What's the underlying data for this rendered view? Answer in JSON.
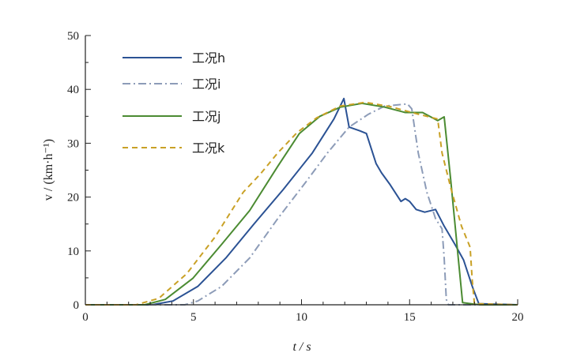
{
  "chart_data": {
    "type": "line",
    "title": "",
    "xlabel": "t / s",
    "ylabel": "v / (km·h⁻¹)",
    "xlim": [
      0,
      20
    ],
    "ylim": [
      0,
      50
    ],
    "xticks": [
      "0",
      "5",
      "10",
      "15",
      "20"
    ],
    "yticks": [
      "0",
      "10",
      "20",
      "30",
      "40",
      "50"
    ],
    "grid": false,
    "legend_position": "top-left",
    "series": [
      {
        "name": "工况h",
        "color": "#2b5294",
        "style": "solid",
        "x": [
          0,
          3.1,
          4.05,
          5.2,
          6.5,
          7.8,
          9.15,
          10.5,
          11.5,
          11.96,
          12.2,
          12.7,
          13.0,
          13.45,
          13.7,
          14.1,
          14.6,
          14.8,
          15.0,
          15.3,
          15.7,
          16.2,
          16.6,
          17.1,
          17.5,
          17.9,
          18.2,
          20
        ],
        "y": [
          0,
          0,
          0.7,
          3.4,
          8.7,
          15,
          21.4,
          28.2,
          34.5,
          38.3,
          33,
          32.3,
          31.8,
          26.2,
          24.5,
          22.3,
          19.2,
          19.7,
          19.2,
          17.7,
          17.2,
          17.7,
          14.6,
          11.2,
          8.3,
          3.4,
          0.2,
          0
        ]
      },
      {
        "name": "工况i",
        "color": "#8d9cb8",
        "style": "dashdot",
        "x": [
          0,
          4.6,
          5.2,
          6.3,
          7.6,
          8.9,
          10.2,
          11.2,
          12.2,
          13.1,
          13.85,
          14.9,
          15.1,
          15.4,
          15.8,
          16.2,
          16.5,
          16.6,
          16.7,
          16.8,
          20
        ],
        "y": [
          0,
          0,
          0.7,
          3.4,
          8.7,
          16,
          22.8,
          28.2,
          33,
          35.4,
          36.9,
          37.3,
          36.4,
          28.2,
          20.9,
          16,
          14.1,
          8.7,
          1,
          0,
          0
        ]
      },
      {
        "name": "工况j",
        "color": "#4b8b32",
        "style": "solid",
        "x": [
          0,
          2.75,
          3.7,
          4.97,
          6.3,
          7.6,
          8.9,
          9.9,
          10.85,
          11.8,
          12.8,
          13.85,
          14.8,
          15.6,
          16.3,
          16.6,
          16.9,
          17.25,
          17.45,
          18.0,
          18.3,
          20
        ],
        "y": [
          0,
          0,
          1,
          4.9,
          11.2,
          17.5,
          25.7,
          31.8,
          35,
          36.7,
          37.4,
          36.7,
          35.7,
          35.7,
          34.2,
          34.9,
          23.3,
          8.7,
          0.4,
          0.1,
          0,
          0
        ]
      },
      {
        "name": "工况k",
        "color": "#c9a126",
        "style": "dashed",
        "x": [
          0,
          2.35,
          3.4,
          4.7,
          6.0,
          7.3,
          8.1,
          8.9,
          9.8,
          10.7,
          11.8,
          12.95,
          14.1,
          15.4,
          16.3,
          16.5,
          16.9,
          17.4,
          17.8,
          17.9,
          18.0,
          20
        ],
        "y": [
          0,
          0,
          1.2,
          5.8,
          12.6,
          20.9,
          24.3,
          28.2,
          32,
          34.7,
          36.9,
          37.6,
          36.8,
          35.4,
          34.5,
          28.2,
          21.8,
          14.6,
          10.7,
          4.4,
          0.2,
          0
        ]
      }
    ]
  }
}
